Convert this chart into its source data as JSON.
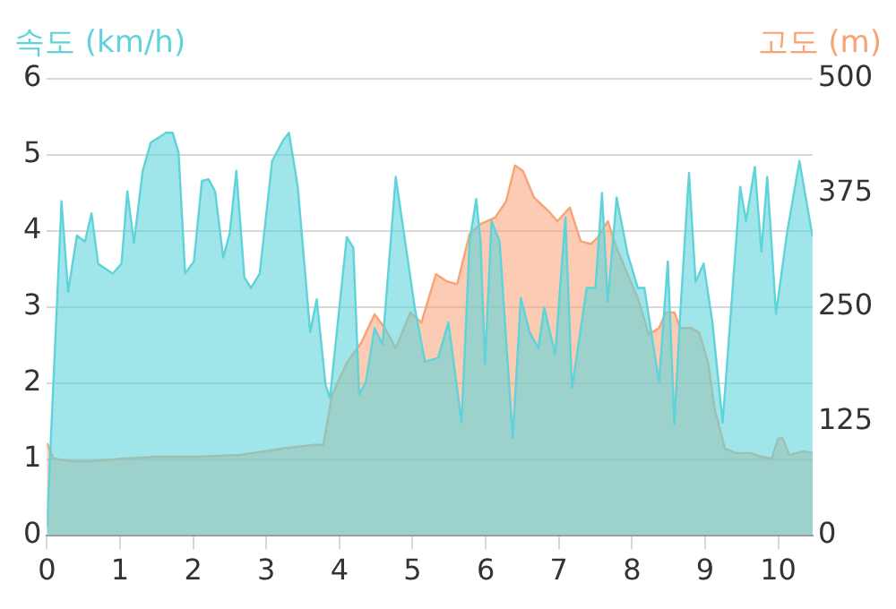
{
  "chart_data": {
    "type": "area",
    "ylabel": "속도 (km/h)",
    "y2label": "고도 (m)",
    "xlim": [
      0,
      10.47
    ],
    "xticks": [
      0,
      1,
      2,
      3,
      4,
      5,
      6,
      7,
      8,
      9,
      10
    ],
    "ylim": [
      0,
      6
    ],
    "yticks": [
      0,
      1,
      2,
      3,
      4,
      5,
      6
    ],
    "y2lim": [
      0,
      500
    ],
    "y2ticks": [
      0,
      125,
      250,
      375,
      500
    ],
    "grid": "y",
    "legend": false,
    "marker": "none",
    "series": [
      {
        "color": "#5fd3da",
        "x": [
          0,
          0.2,
          0.29,
          0.41,
          0.52,
          0.61,
          0.7,
          0.9,
          1.02,
          1.1,
          1.19,
          1.31,
          1.42,
          1.63,
          1.72,
          1.8,
          1.89,
          2.01,
          2.12,
          2.21,
          2.3,
          2.41,
          2.5,
          2.59,
          2.7,
          2.79,
          2.91,
          3.08,
          3.23,
          3.31,
          3.43,
          3.6,
          3.69,
          3.81,
          3.87,
          4.1,
          4.19,
          4.27,
          4.36,
          4.48,
          4.59,
          4.77,
          5.03,
          5.17,
          5.35,
          5.49,
          5.67,
          5.78,
          5.87,
          5.93,
          5.99,
          6.08,
          6.19,
          6.37,
          6.48,
          6.6,
          6.72,
          6.8,
          6.95,
          7.09,
          7.18,
          7.3,
          7.38,
          7.5,
          7.59,
          7.67,
          7.79,
          7.94,
          8.08,
          8.17,
          8.37,
          8.49,
          8.58,
          8.66,
          8.78,
          8.87,
          8.98,
          9.1,
          9.24,
          9.48,
          9.56,
          9.68,
          9.77,
          9.85,
          9.97,
          10.12,
          10.29,
          10.47
        ],
        "values": [
          0.1,
          4.39,
          3.2,
          3.94,
          3.86,
          4.23,
          3.57,
          3.44,
          3.57,
          4.52,
          3.84,
          4.79,
          5.16,
          5.29,
          5.29,
          5.03,
          3.44,
          3.6,
          4.66,
          4.68,
          4.52,
          3.65,
          3.97,
          4.79,
          3.39,
          3.25,
          3.44,
          4.92,
          5.19,
          5.29,
          4.58,
          2.67,
          3.1,
          1.98,
          1.8,
          3.92,
          3.78,
          1.85,
          2.01,
          2.72,
          2.51,
          4.71,
          2.99,
          2.28,
          2.33,
          2.8,
          1.48,
          3.86,
          4.42,
          3.86,
          2.25,
          4.13,
          3.86,
          1.27,
          3.12,
          2.67,
          2.46,
          2.99,
          2.38,
          4.18,
          1.93,
          2.72,
          3.25,
          3.25,
          4.5,
          3.07,
          4.44,
          3.7,
          3.25,
          3.25,
          2.01,
          3.6,
          1.46,
          2.91,
          4.76,
          3.33,
          3.57,
          2.8,
          1.48,
          4.58,
          4.13,
          4.84,
          3.73,
          4.71,
          2.91,
          3.97,
          4.92,
          3.92
        ]
      },
      {
        "color": "#f7a374",
        "axis": "y2",
        "x": [
          0,
          0.09,
          0.32,
          0.61,
          1.05,
          1.48,
          2.06,
          2.65,
          3.23,
          3.66,
          3.78,
          3.9,
          4.1,
          4.3,
          4.48,
          4.62,
          4.77,
          4.97,
          5.12,
          5.32,
          5.47,
          5.61,
          5.78,
          5.93,
          6.13,
          6.28,
          6.4,
          6.51,
          6.66,
          6.86,
          6.98,
          7.15,
          7.3,
          7.44,
          7.53,
          7.67,
          7.79,
          7.94,
          8.08,
          8.23,
          8.37,
          8.46,
          8.58,
          8.66,
          8.81,
          8.92,
          9.04,
          9.13,
          9.27,
          9.42,
          9.62,
          9.77,
          9.91,
          10.0,
          10.06,
          10.15,
          10.35,
          10.47
        ],
        "values": [
          101,
          84,
          81,
          81,
          84,
          86,
          86,
          88,
          95,
          99,
          99,
          154,
          189,
          211,
          242,
          227,
          205,
          244,
          233,
          286,
          278,
          275,
          330,
          341,
          348,
          366,
          405,
          399,
          370,
          355,
          344,
          359,
          322,
          319,
          326,
          344,
          315,
          286,
          260,
          220,
          227,
          244,
          244,
          227,
          227,
          222,
          189,
          139,
          95,
          90,
          90,
          86,
          84,
          106,
          106,
          88,
          92,
          90
        ]
      }
    ]
  }
}
